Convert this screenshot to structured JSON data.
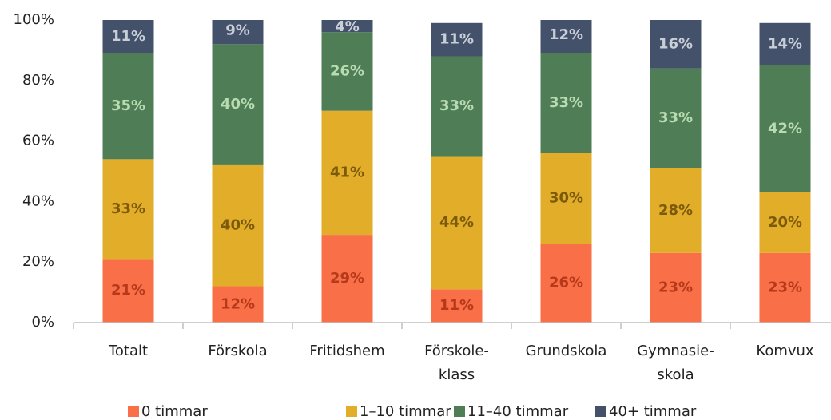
{
  "chart_data": {
    "type": "stacked_bar",
    "categories": [
      "Totalt",
      "Förskola",
      "Fritidshem",
      "Förskole-\nklass",
      "Grundskola",
      "Gymnasie-\nskola",
      "Komvux"
    ],
    "series": [
      {
        "name": "0 timmar",
        "color": "#f96f47",
        "label_color": "#b5391a",
        "values": [
          21,
          12,
          29,
          11,
          26,
          23,
          23
        ],
        "value_labels": [
          "21%",
          "12%",
          "29%",
          "11%",
          "26%",
          "23%",
          "23%"
        ]
      },
      {
        "name": "1–10 timmar",
        "color": "#e2ad29",
        "label_color": "#7b5a0c",
        "values": [
          33,
          40,
          41,
          44,
          30,
          28,
          20
        ],
        "value_labels": [
          "33%",
          "40%",
          "41%",
          "44%",
          "30%",
          "28%",
          "20%"
        ]
      },
      {
        "name": "11–40 timmar",
        "color": "#4e7d56",
        "label_color": "#b9dbb1",
        "values": [
          35,
          40,
          26,
          33,
          33,
          33,
          42
        ],
        "value_labels": [
          "35%",
          "40%",
          "26%",
          "33%",
          "33%",
          "33%",
          "42%"
        ]
      },
      {
        "name": "40+ timmar",
        "color": "#44516a",
        "label_color": "#c9cfd9",
        "values": [
          11,
          9,
          4,
          11,
          12,
          16,
          14
        ],
        "value_labels": [
          "11%",
          "9%",
          "4%",
          "11%",
          "12%",
          "16%",
          "14%"
        ]
      }
    ],
    "ylim": [
      0,
      100
    ],
    "yticks": [
      {
        "value": 0,
        "label": "0%"
      },
      {
        "value": 20,
        "label": "20%"
      },
      {
        "value": 40,
        "label": "40%"
      },
      {
        "value": 60,
        "label": "60%"
      },
      {
        "value": 80,
        "label": "80%"
      },
      {
        "value": 100,
        "label": "100%"
      }
    ],
    "legend": "bottom"
  }
}
